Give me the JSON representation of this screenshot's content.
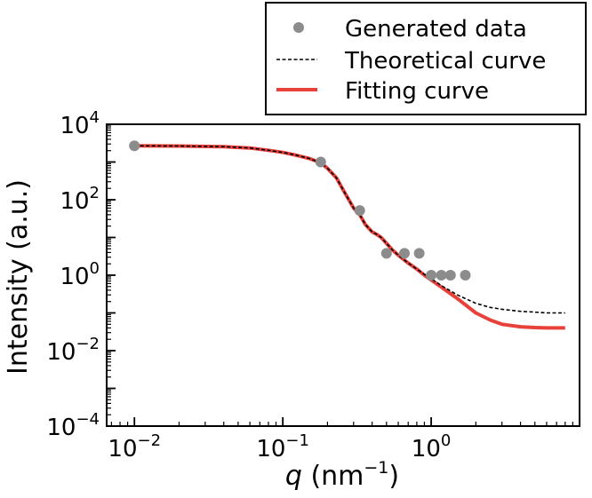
{
  "chart_data": {
    "type": "scatter",
    "title": "",
    "xlabel": {
      "var": "q",
      "unit_prefix": " (nm",
      "exp": "−1",
      "unit_suffix": ")"
    },
    "ylabel": "Intensity (a.u.)",
    "xscale": "log",
    "yscale": "log",
    "xlim": [
      0.0065,
      10
    ],
    "ylim": [
      0.0001,
      10000
    ],
    "x_ticks": [
      {
        "value": 0.01,
        "base": "10",
        "exp": "−2"
      },
      {
        "value": 0.1,
        "base": "10",
        "exp": "−1"
      },
      {
        "value": 1,
        "base": "10",
        "exp": "0"
      }
    ],
    "y_ticks": [
      {
        "value": 10000,
        "base": "10",
        "exp": "4"
      },
      {
        "value": 100,
        "base": "10",
        "exp": "2"
      },
      {
        "value": 1,
        "base": "10",
        "exp": "0"
      },
      {
        "value": 0.01,
        "base": "10",
        "exp": "−2"
      },
      {
        "value": 0.0001,
        "base": "10",
        "exp": "−4"
      }
    ],
    "legend": {
      "position": "top-right, above plot",
      "entries": [
        {
          "label": "Generated data",
          "style": "marker",
          "color": "#8c8c8c"
        },
        {
          "label": "Theoretical curve",
          "style": "dashed",
          "color": "#000000"
        },
        {
          "label": "Fitting curve",
          "style": "solid",
          "color": "#e8413a"
        }
      ]
    },
    "series": [
      {
        "name": "Generated data",
        "kind": "scatter",
        "color": "#8c8c8c",
        "x": [
          0.01,
          0.18,
          0.33,
          0.5,
          0.66,
          0.83,
          1.0,
          1.17,
          1.35,
          1.7
        ],
        "y": [
          2700,
          1000,
          52,
          3.8,
          3.8,
          3.8,
          1.0,
          1.0,
          1.0,
          1.0
        ]
      },
      {
        "name": "Theoretical curve",
        "kind": "line",
        "style": "dashed",
        "color": "#000000",
        "x": [
          0.01,
          0.02,
          0.04,
          0.06,
          0.08,
          0.1,
          0.12,
          0.15,
          0.18,
          0.2,
          0.23,
          0.26,
          0.3,
          0.33,
          0.36,
          0.4,
          0.43,
          0.46,
          0.5,
          0.55,
          0.6,
          0.7,
          0.8,
          0.9,
          1.0,
          1.2,
          1.5,
          2.0,
          2.5,
          3.0,
          4.0,
          5.0,
          6.0,
          7.0,
          8.0
        ],
        "y": [
          2700,
          2650,
          2550,
          2350,
          2050,
          1800,
          1550,
          1250,
          950,
          680,
          380,
          160,
          60,
          40,
          22,
          14,
          12,
          10,
          7,
          4.6,
          3.4,
          2.1,
          1.45,
          1.05,
          0.8,
          0.5,
          0.3,
          0.18,
          0.14,
          0.125,
          0.11,
          0.105,
          0.1,
          0.1,
          0.1
        ]
      },
      {
        "name": "Fitting curve",
        "kind": "line",
        "style": "solid",
        "color": "#e8413a",
        "x": [
          0.01,
          0.02,
          0.04,
          0.06,
          0.08,
          0.1,
          0.12,
          0.15,
          0.18,
          0.2,
          0.23,
          0.26,
          0.3,
          0.33,
          0.36,
          0.4,
          0.43,
          0.46,
          0.5,
          0.55,
          0.6,
          0.7,
          0.8,
          0.9,
          1.0,
          1.2,
          1.5,
          2.0,
          2.5,
          3.0,
          4.0,
          5.0,
          6.0,
          7.0,
          8.0
        ],
        "y": [
          2700,
          2650,
          2550,
          2350,
          2050,
          1800,
          1550,
          1250,
          950,
          680,
          380,
          160,
          60,
          40,
          22,
          14,
          12,
          10,
          7,
          4.6,
          3.4,
          2.1,
          1.45,
          1.0,
          0.75,
          0.45,
          0.24,
          0.1,
          0.065,
          0.05,
          0.043,
          0.041,
          0.04,
          0.04,
          0.04
        ]
      }
    ]
  }
}
